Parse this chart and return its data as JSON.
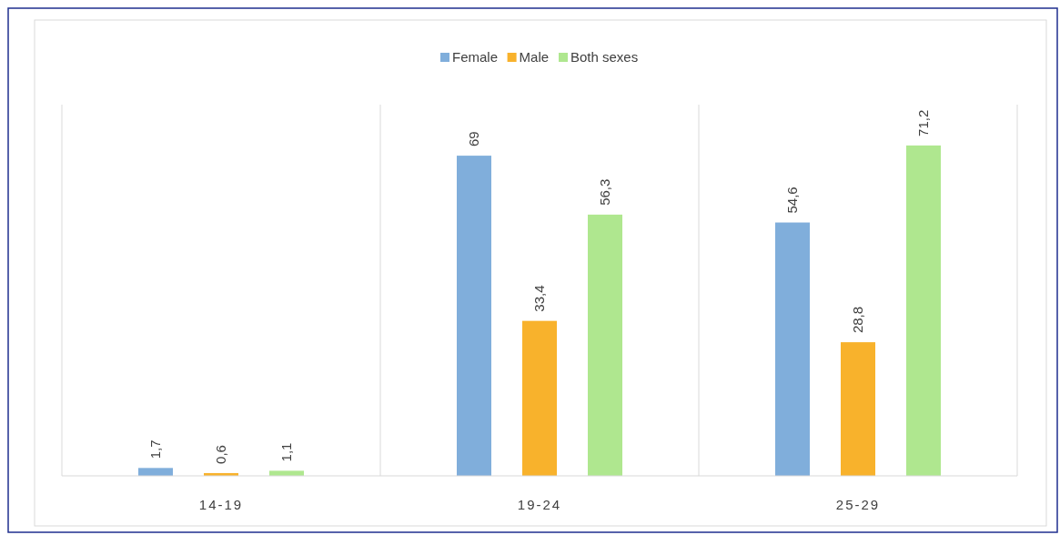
{
  "chart_data": {
    "type": "bar",
    "categories": [
      "14-19",
      "19-24",
      "25-29"
    ],
    "series": [
      {
        "name": "Female",
        "color": "#80aedb",
        "values": [
          1.7,
          69,
          54.6
        ],
        "value_labels": [
          "1,7",
          "69",
          "54,6"
        ]
      },
      {
        "name": "Male",
        "color": "#f8b22c",
        "values": [
          0.6,
          33.4,
          28.8
        ],
        "value_labels": [
          "0,6",
          "33,4",
          "28,8"
        ]
      },
      {
        "name": "Both sexes",
        "color": "#afe78f",
        "values": [
          1.1,
          56.3,
          71.2
        ],
        "value_labels": [
          "1,1",
          "56,3",
          "71,2"
        ]
      }
    ],
    "ylim": [
      0,
      80
    ],
    "tick_labels": "x",
    "grid": "x",
    "legend": "top"
  }
}
